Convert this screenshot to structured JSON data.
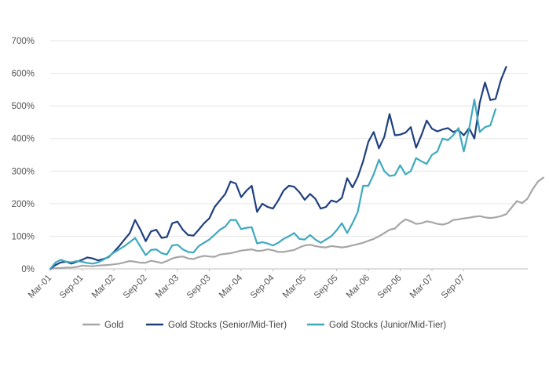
{
  "chart_data": {
    "type": "line",
    "title": "",
    "xlabel": "",
    "ylabel": "",
    "ylim": [
      0,
      700
    ],
    "y_ticks": [
      "0%",
      "100%",
      "200%",
      "300%",
      "400%",
      "500%",
      "600%",
      "700%"
    ],
    "x_ticks": [
      "Mar-01",
      "Sep-01",
      "Mar-02",
      "Sep-02",
      "Mar-03",
      "Sep-03",
      "Mar-04",
      "Sep-04",
      "Mar-05",
      "Sep-05",
      "Mar-06",
      "Sep-06",
      "Mar-07",
      "Sep-07"
    ],
    "grid": "horizontal",
    "legend_position": "bottom",
    "x_start": "2001-03",
    "x_step": "month",
    "series": [
      {
        "name": "Gold",
        "color": "#a6a6a6",
        "values": [
          0,
          2,
          3,
          4,
          4,
          6,
          10,
          9,
          8,
          10,
          11,
          12,
          14,
          16,
          20,
          24,
          22,
          19,
          19,
          25,
          22,
          18,
          24,
          32,
          36,
          38,
          32,
          30,
          36,
          40,
          38,
          37,
          44,
          46,
          48,
          52,
          56,
          58,
          60,
          55,
          56,
          60,
          57,
          52,
          52,
          55,
          58,
          66,
          72,
          74,
          70,
          67,
          66,
          70,
          68,
          66,
          68,
          72,
          76,
          80,
          86,
          92,
          100,
          110,
          120,
          124,
          140,
          152,
          146,
          138,
          140,
          146,
          143,
          138,
          136,
          140,
          150,
          152,
          155,
          157,
          160,
          162,
          158,
          156,
          158,
          162,
          168,
          188,
          208,
          202,
          215,
          245,
          268,
          280
        ]
      },
      {
        "name": "Gold Stocks (Senior/Mid-Tier)",
        "color": "#1f3f7f",
        "values": [
          0,
          12,
          20,
          22,
          16,
          22,
          28,
          35,
          32,
          26,
          30,
          36,
          52,
          70,
          90,
          110,
          150,
          120,
          85,
          115,
          120,
          95,
          98,
          140,
          145,
          120,
          104,
          102,
          120,
          140,
          155,
          190,
          210,
          230,
          268,
          262,
          220,
          240,
          255,
          175,
          200,
          190,
          185,
          210,
          240,
          255,
          252,
          235,
          212,
          230,
          215,
          185,
          190,
          210,
          205,
          218,
          278,
          250,
          282,
          330,
          390,
          420,
          370,
          405,
          475,
          410,
          412,
          418,
          435,
          372,
          410,
          455,
          430,
          422,
          428,
          432,
          420,
          426,
          410,
          432,
          400,
          510,
          572,
          518,
          522,
          580,
          620
        ]
      },
      {
        "name": "Gold Stocks (Junior/Mid-Tier)",
        "color": "#3fa9be",
        "values": [
          0,
          20,
          28,
          22,
          20,
          24,
          22,
          18,
          16,
          20,
          28,
          38,
          50,
          60,
          70,
          82,
          95,
          68,
          42,
          58,
          60,
          48,
          44,
          72,
          74,
          60,
          52,
          50,
          70,
          80,
          90,
          105,
          120,
          130,
          150,
          150,
          122,
          126,
          128,
          78,
          82,
          78,
          72,
          80,
          92,
          100,
          110,
          92,
          90,
          104,
          90,
          80,
          90,
          100,
          118,
          140,
          110,
          140,
          175,
          255,
          255,
          290,
          335,
          300,
          285,
          288,
          318,
          290,
          300,
          340,
          330,
          322,
          350,
          360,
          400,
          395,
          410,
          432,
          360,
          430,
          520,
          420,
          435,
          440,
          490
        ]
      }
    ]
  }
}
